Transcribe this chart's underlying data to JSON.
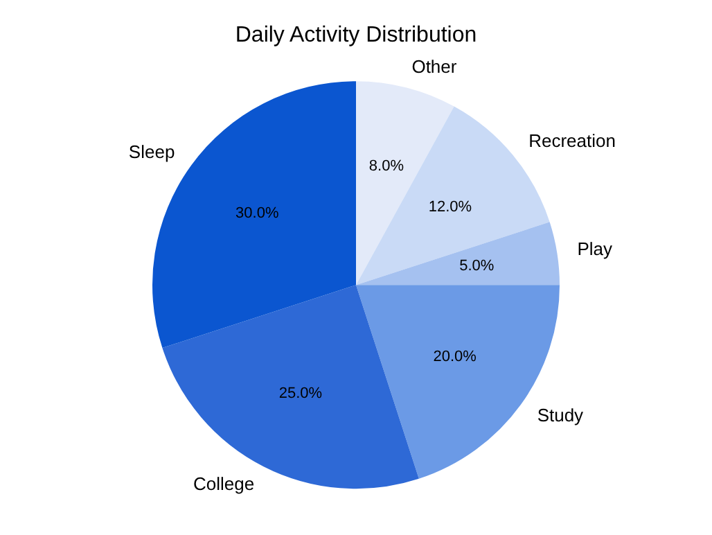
{
  "chart_data": {
    "type": "pie",
    "title": "Daily Activity Distribution",
    "categories": [
      "Other",
      "Recreation",
      "Play",
      "Study",
      "College",
      "Sleep"
    ],
    "values": [
      8,
      12,
      5,
      20,
      25,
      30
    ],
    "colors": [
      "#e3eaf9",
      "#c9daf6",
      "#a5c1f0",
      "#6b9ae6",
      "#2e69d6",
      "#0b56d0"
    ],
    "value_labels": [
      "8.0%",
      "12.0%",
      "5.0%",
      "20.0%",
      "25.0%",
      "30.0%"
    ],
    "legend": false
  }
}
